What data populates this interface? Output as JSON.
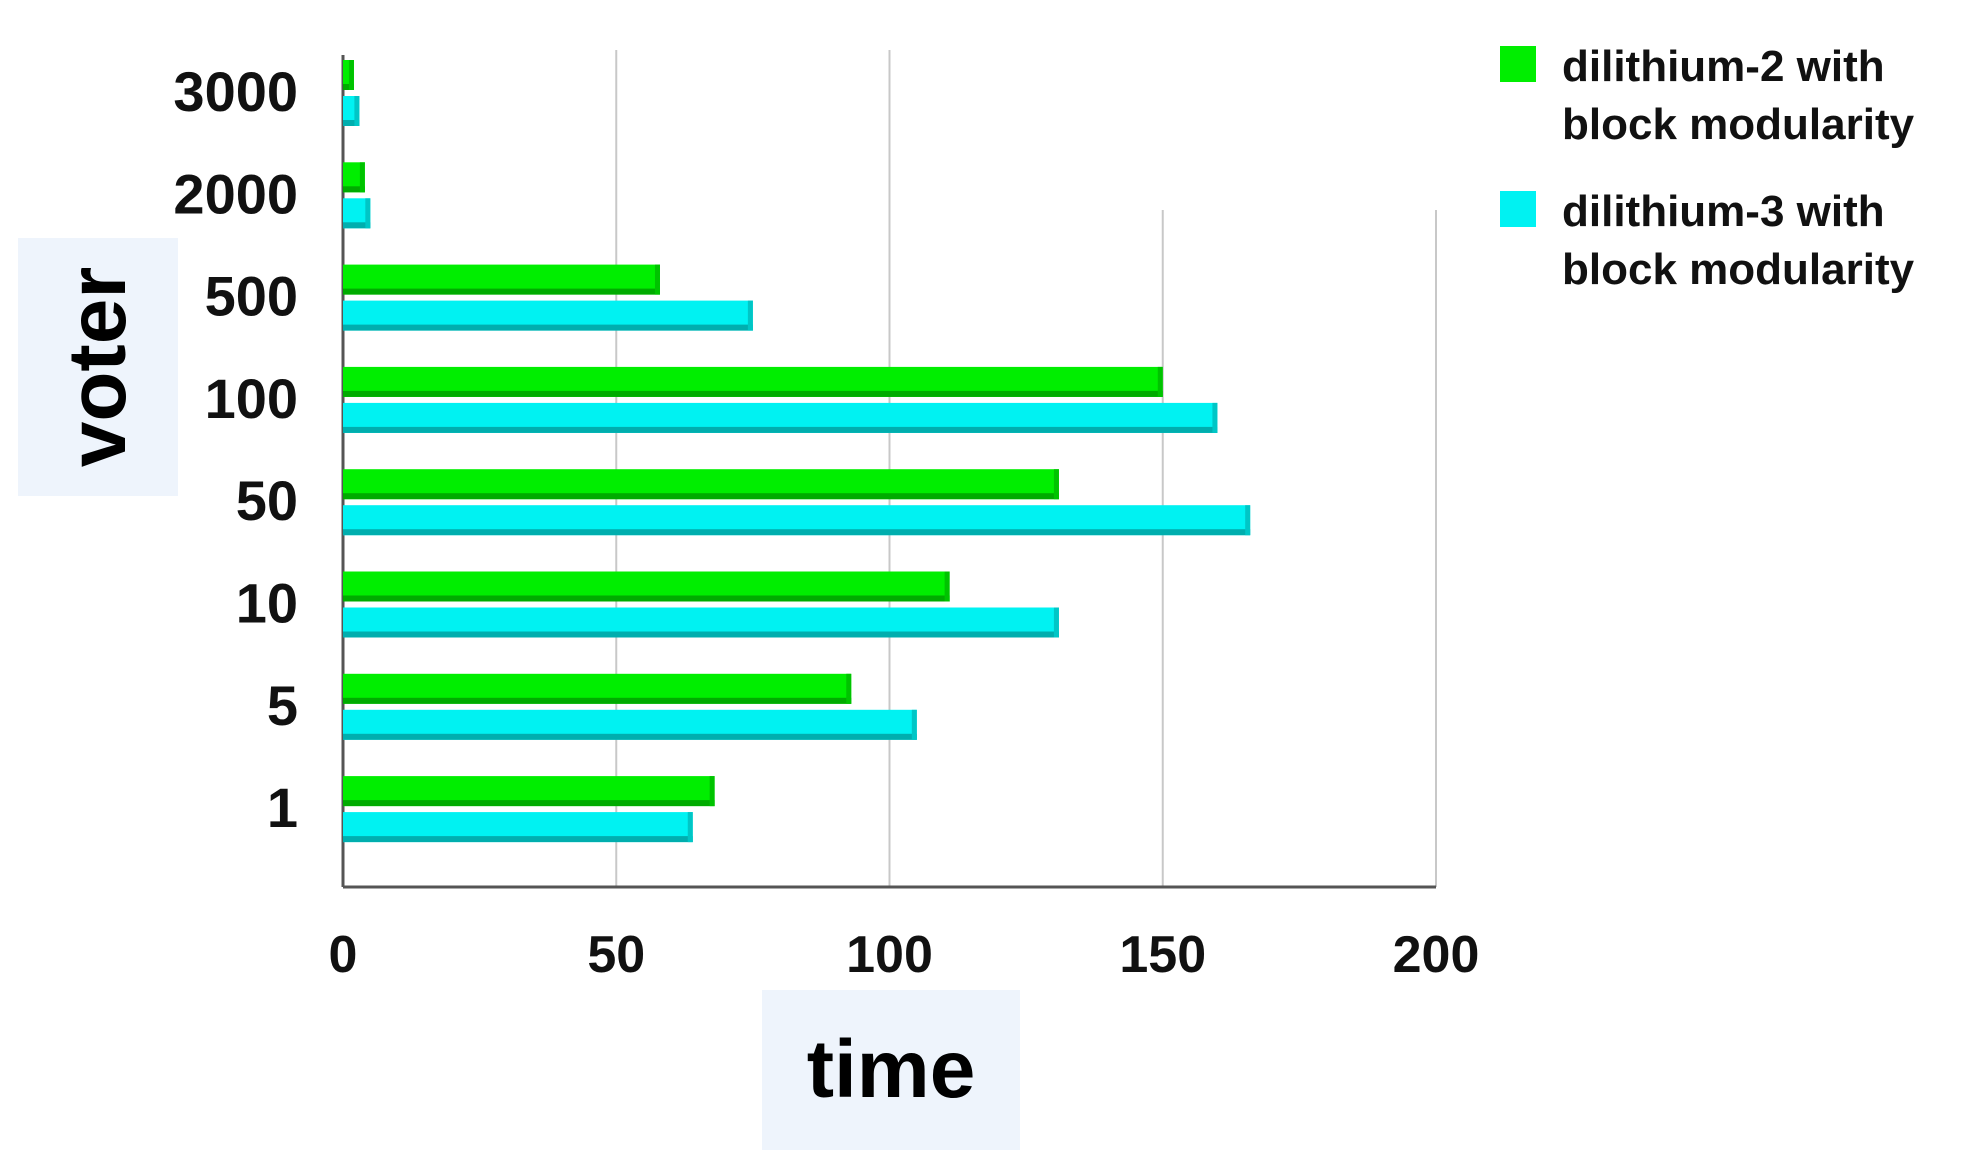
{
  "chart_data": {
    "type": "bar",
    "orientation": "horizontal",
    "categories": [
      "3000",
      "2000",
      "500",
      "100",
      "50",
      "10",
      "5",
      "1"
    ],
    "series": [
      {
        "name": "dilithium-2 with block modularity",
        "color": "#00ee00",
        "values": [
          2,
          4,
          58,
          150,
          131,
          111,
          93,
          68
        ]
      },
      {
        "name": "dilithium-3 with block modularity",
        "color": "#00f2f2",
        "values": [
          3,
          5,
          75,
          160,
          166,
          131,
          105,
          64
        ]
      }
    ],
    "xlabel": "time",
    "ylabel": "voter",
    "xlim": [
      0,
      200
    ],
    "xticks": [
      "0",
      "50",
      "100",
      "150",
      "200"
    ],
    "grid": "vertical",
    "legend_position": "top-right"
  }
}
